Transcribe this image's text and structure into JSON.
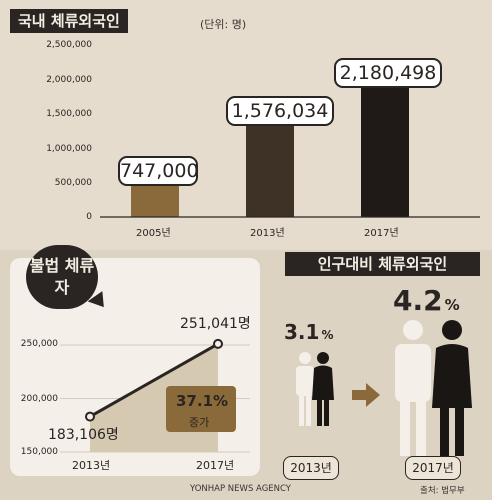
{
  "title": "국내 체류외국인",
  "unit": "(단위: 명)",
  "colors": {
    "dark": "#2a2522",
    "bar2005": "#8a6a3a",
    "bar2013": "#3e3226",
    "bar2017": "#1f1a17",
    "accent": "#8a6a3a"
  },
  "chart_data": [
    {
      "type": "bar",
      "title": "국내 체류외국인",
      "categories": [
        "2005년",
        "2013년",
        "2017년"
      ],
      "values": [
        747000,
        1576034,
        2180498
      ],
      "value_labels": [
        "747,000",
        "1,576,034",
        "2,180,498"
      ],
      "y_ticks": [
        "0",
        "500,000",
        "1,000,000",
        "1,500,000",
        "2,000,000",
        "2,500,000"
      ],
      "ylim": [
        0,
        2500000
      ]
    },
    {
      "type": "line",
      "title": "불법 체류자",
      "categories": [
        "2013년",
        "2017년"
      ],
      "values": [
        183106,
        251041
      ],
      "value_labels": [
        "183,106명",
        "251,041명"
      ],
      "y_ticks": [
        "150,000",
        "200,000",
        "250,000"
      ],
      "ylim": [
        150000,
        265000
      ],
      "annotation": {
        "value": "37.1%",
        "label": "증가"
      }
    },
    {
      "type": "bar",
      "title": "인구대비 체류외국인",
      "categories": [
        "2013년",
        "2017년"
      ],
      "values": [
        3.1,
        4.2
      ],
      "value_labels": [
        "3.1",
        "4.2"
      ],
      "unit": "%"
    }
  ],
  "footer": {
    "agency": "YONHAP NEWS AGENCY",
    "source": "출처: 법무부"
  }
}
